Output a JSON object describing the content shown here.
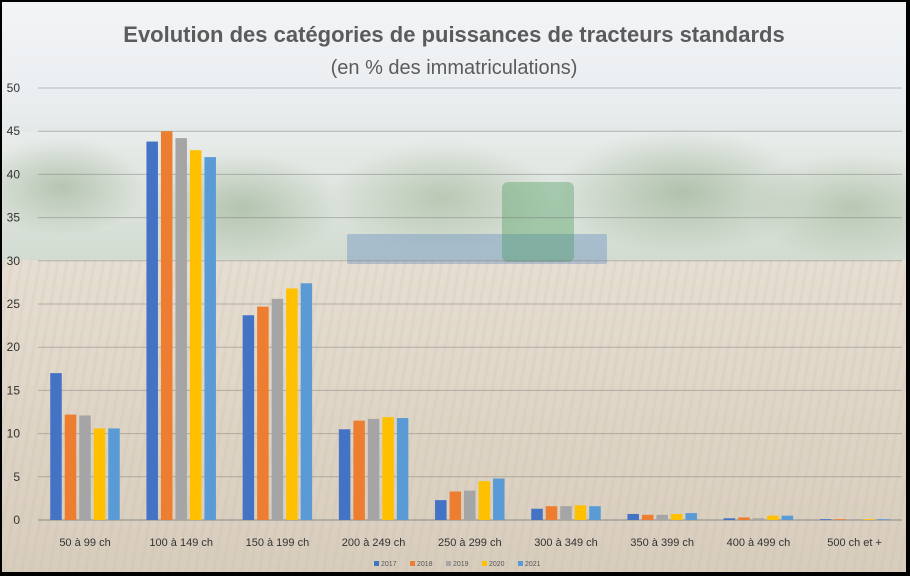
{
  "chart_data": {
    "type": "bar",
    "title": "Evolution des catégories de puissances de tracteurs standards",
    "subtitle": "(en % des immatriculations)",
    "xlabel": "",
    "ylabel": "",
    "ylim": [
      0,
      50
    ],
    "yticks": [
      "0",
      "5",
      "10",
      "15",
      "20",
      "25",
      "30",
      "35",
      "40",
      "45",
      "50"
    ],
    "grid": true,
    "legend_position": "bottom",
    "categories": [
      "50 à 99 ch",
      "100 à 149 ch",
      "150 à 199 ch",
      "200 à 249 ch",
      "250 à 299 ch",
      "300 à 349 ch",
      "350 à 399 ch",
      "400 à 499 ch",
      "500 ch et +"
    ],
    "series": [
      {
        "name": "2017",
        "color": "#4472c4",
        "values": [
          17.0,
          43.8,
          23.7,
          10.5,
          2.3,
          1.3,
          0.7,
          0.2,
          0.1
        ]
      },
      {
        "name": "2018",
        "color": "#ed7d31",
        "values": [
          12.2,
          45.0,
          24.7,
          11.5,
          3.3,
          1.6,
          0.6,
          0.3,
          0.1
        ]
      },
      {
        "name": "2019",
        "color": "#a5a5a5",
        "values": [
          12.1,
          44.2,
          25.6,
          11.7,
          3.4,
          1.6,
          0.6,
          0.2,
          0.1
        ]
      },
      {
        "name": "2020",
        "color": "#ffc000",
        "values": [
          10.6,
          42.8,
          26.8,
          11.9,
          4.5,
          1.7,
          0.7,
          0.5,
          0.0
        ]
      },
      {
        "name": "2021",
        "color": "#5b9bd5",
        "values": [
          10.6,
          42.0,
          27.4,
          11.8,
          4.8,
          1.6,
          0.8,
          0.5,
          0.1
        ]
      }
    ]
  }
}
